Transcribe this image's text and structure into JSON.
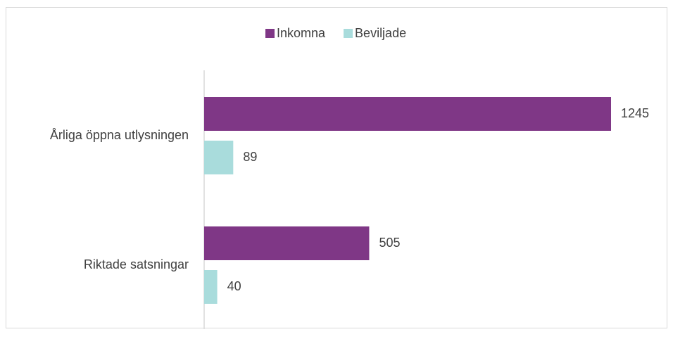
{
  "chart_data": {
    "type": "bar",
    "orientation": "horizontal",
    "categories": [
      "Årliga öppna utlysningen",
      "Riktade satsningar"
    ],
    "series": [
      {
        "name": "Inkomna",
        "color": "#7f3786",
        "values": [
          1245,
          505
        ]
      },
      {
        "name": "Beviljade",
        "color": "#a9dcdc",
        "values": [
          89,
          40
        ]
      }
    ],
    "legend": "top"
  }
}
